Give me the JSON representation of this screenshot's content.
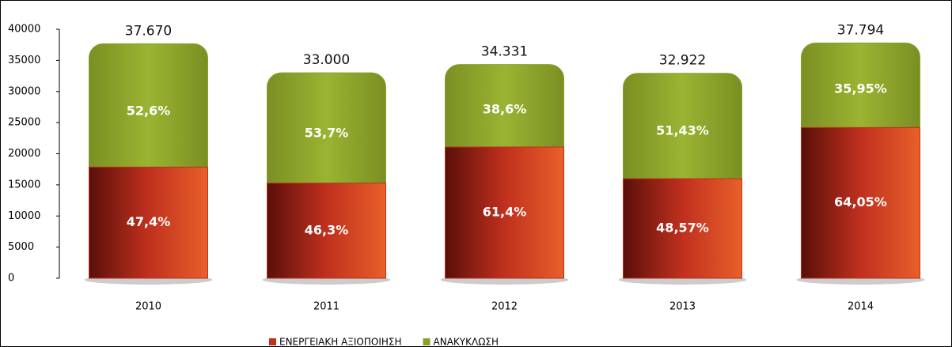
{
  "chart_data": {
    "type": "bar",
    "stacked": true,
    "categories": [
      "2010",
      "2011",
      "2012",
      "2013",
      "2014"
    ],
    "series": [
      {
        "name": "ΕΝΕΡΓΕΙΑΚΗ ΑΞΙΟΠΟΙΗΣΗ",
        "color": "#c0301e",
        "values": [
          17856,
          15279,
          21079,
          15990,
          24207
        ],
        "percents": [
          {
            "value": 47.4,
            "label": "47,4%"
          },
          {
            "value": 46.3,
            "label": "46,3%"
          },
          {
            "value": 61.4,
            "label": "61,4%"
          },
          {
            "value": 48.57,
            "label": "48,57%"
          },
          {
            "value": 64.05,
            "label": "64,05%"
          }
        ]
      },
      {
        "name": "ΑΝΑΚΥΚΛΩΣΗ",
        "color": "#8aa12a",
        "values": [
          19814,
          17721,
          13252,
          16932,
          13587
        ],
        "percents": [
          {
            "value": 52.6,
            "label": "52,6%"
          },
          {
            "value": 53.7,
            "label": "53,7%"
          },
          {
            "value": 38.6,
            "label": "38,6%"
          },
          {
            "value": 51.43,
            "label": "51,43%"
          },
          {
            "value": 35.95,
            "label": "35,95%"
          }
        ]
      }
    ],
    "totals": [
      {
        "value": 37670,
        "label": "37.670"
      },
      {
        "value": 33000,
        "label": "33.000"
      },
      {
        "value": 34331,
        "label": "34.331"
      },
      {
        "value": 32922,
        "label": "32.922"
      },
      {
        "value": 37794,
        "label": "37.794"
      }
    ],
    "ylim": [
      0,
      40000
    ],
    "yticks": [
      0,
      5000,
      10000,
      15000,
      20000,
      25000,
      30000,
      35000,
      40000
    ]
  }
}
